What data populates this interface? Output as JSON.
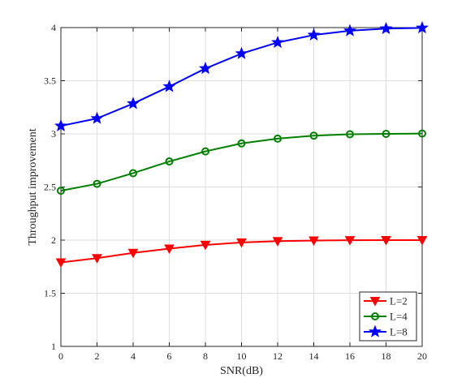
{
  "chart_data": {
    "type": "line",
    "title": "",
    "xlabel": "SNR(dB)",
    "ylabel": "Throughput improvement",
    "xlim": [
      0,
      20
    ],
    "ylim": [
      1,
      4
    ],
    "x": [
      0,
      2,
      4,
      6,
      8,
      10,
      12,
      14,
      16,
      18,
      20
    ],
    "xticks": [
      "0",
      "2",
      "4",
      "6",
      "8",
      "10",
      "12",
      "14",
      "16",
      "18",
      "20"
    ],
    "yticks": [
      "1",
      "1.5",
      "2",
      "2.5",
      "3",
      "3.5",
      "4"
    ],
    "ytick_values": [
      1,
      1.5,
      2,
      2.5,
      3,
      3.5,
      4
    ],
    "grid": true,
    "legend_position": "bottom-right",
    "series": [
      {
        "name": "L=2",
        "color": "#ff0000",
        "marker": "triangle-down",
        "values": [
          1.79,
          1.83,
          1.88,
          1.92,
          1.955,
          1.978,
          1.99,
          1.996,
          1.999,
          2.0,
          2.0
        ]
      },
      {
        "name": "L=4",
        "color": "#008000",
        "marker": "circle",
        "values": [
          2.465,
          2.53,
          2.63,
          2.74,
          2.835,
          2.91,
          2.955,
          2.983,
          2.996,
          3.0,
          3.003
        ]
      },
      {
        "name": "L=8",
        "color": "#0000ff",
        "marker": "star",
        "values": [
          3.075,
          3.145,
          3.285,
          3.445,
          3.615,
          3.755,
          3.86,
          3.93,
          3.97,
          3.99,
          3.997
        ]
      }
    ]
  }
}
